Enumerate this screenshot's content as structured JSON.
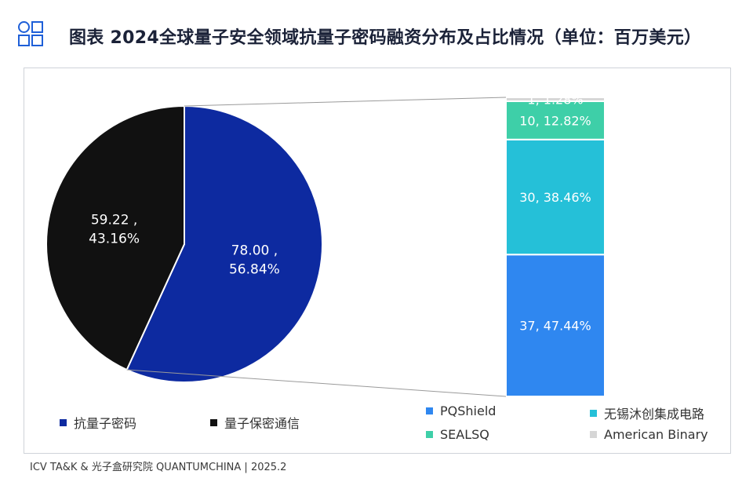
{
  "header": {
    "title": "图表 2024全球量子安全领域抗量子密码融资分布及占比情况（单位：百万美元）"
  },
  "source": "ICV TA&K & 光子盒研究院 QUANTUMCHINA | 2025.2",
  "chart_data": [
    {
      "type": "pie",
      "categories": [
        "抗量子密码",
        "量子保密通信"
      ],
      "values": [
        78.0,
        59.22
      ],
      "percents": [
        "56.84%",
        "43.16%"
      ],
      "data_labels": [
        "78.00 ,\n56.84%",
        "59.22 ,\n43.16%"
      ],
      "colors": [
        "#0d2aa0",
        "#111111"
      ],
      "legend": [
        "抗量子密码",
        "量子保密通信"
      ],
      "legend_position": "bottom"
    },
    {
      "type": "bar",
      "stacked": true,
      "categories": [
        "PQShield",
        "无锡沐创集成电路",
        "SEALSQ",
        "American Binary"
      ],
      "values": [
        37,
        30,
        10,
        1
      ],
      "percents": [
        "47.44%",
        "38.46%",
        "12.82%",
        "1.28%"
      ],
      "data_labels": [
        "37, 47.44%",
        "30, 38.46%",
        "10, 12.82%",
        "1, 1.28%"
      ],
      "colors": [
        "#2f87f0",
        "#25c0d8",
        "#3ecfa8",
        "#d6d6d6"
      ],
      "legend": [
        "PQShield",
        "无锡沐创集成电路",
        "SEALSQ",
        "American Binary"
      ],
      "legend_position": "bottom"
    }
  ]
}
